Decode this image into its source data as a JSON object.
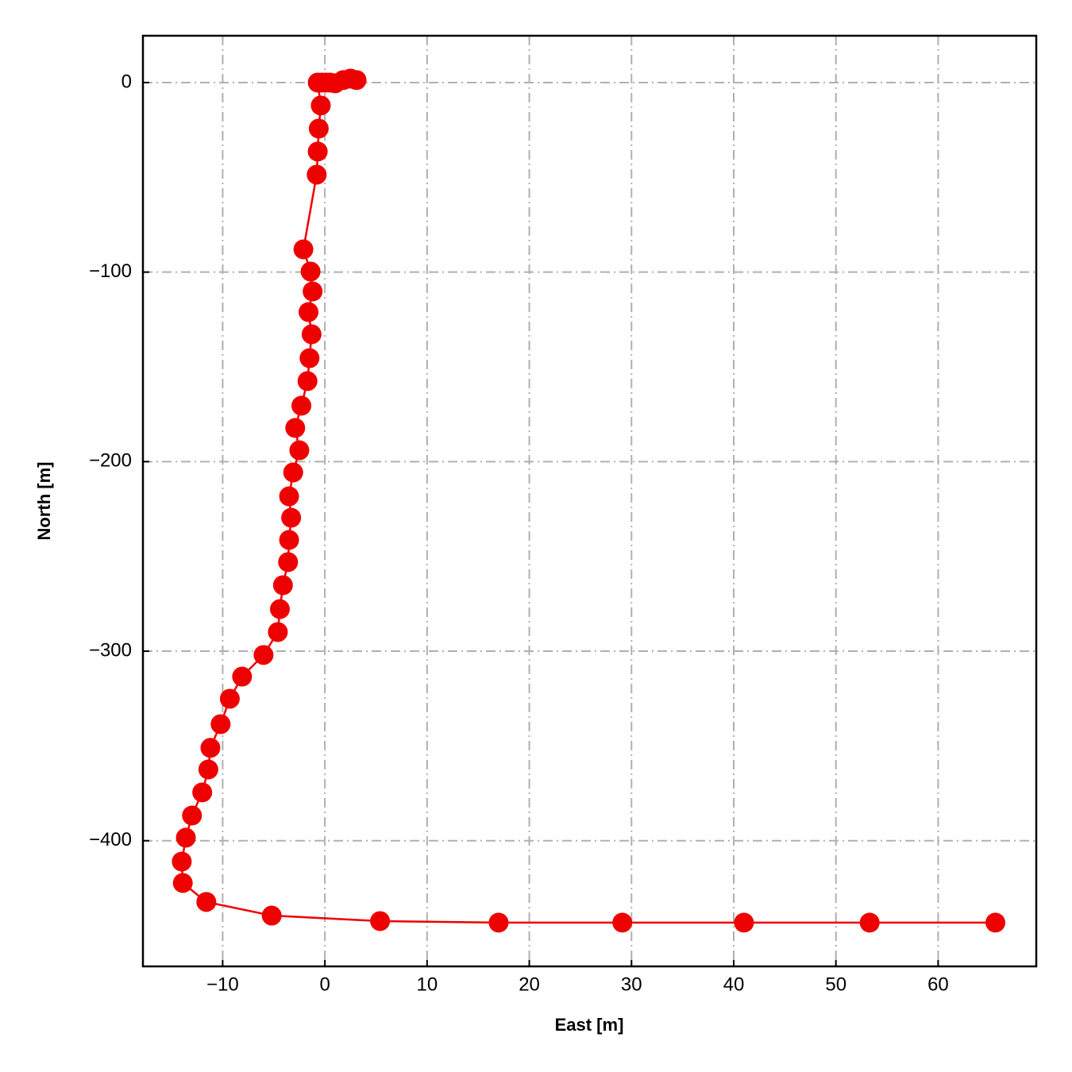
{
  "chart_data": {
    "type": "line",
    "xlabel": "East [m]",
    "ylabel": "North [m]",
    "color": "#ee0000",
    "grid": true,
    "markers": true,
    "x": [
      3.1,
      2.5,
      1.8,
      1.0,
      0.5,
      0.1,
      -0.3,
      -0.7,
      -0.4,
      -0.6,
      -0.7,
      -0.8,
      -2.1,
      -1.4,
      -1.2,
      -1.6,
      -1.3,
      -1.5,
      -1.7,
      -2.3,
      -2.9,
      -2.5,
      -3.1,
      -3.5,
      -3.3,
      -3.5,
      -3.6,
      -4.1,
      -4.4,
      -4.6,
      -6.0,
      -8.1,
      -9.3,
      -10.2,
      -11.2,
      -11.4,
      -12.0,
      -13.0,
      -13.6,
      -14.0,
      -13.9,
      -11.6,
      -5.2,
      5.4,
      17.0,
      29.1,
      41.0,
      53.3,
      65.6
    ],
    "values": [
      1.3,
      2.1,
      1.3,
      -0.4,
      0,
      0,
      0,
      0,
      -12.1,
      -24.3,
      -36.4,
      -48.6,
      -88.0,
      -99.7,
      -110.2,
      -121.1,
      -132.8,
      -145.4,
      -157.5,
      -170.5,
      -182.2,
      -194.0,
      -205.7,
      -218.3,
      -229.6,
      -241.3,
      -253.0,
      -265.2,
      -277.8,
      -289.9,
      -302.0,
      -313.4,
      -325.1,
      -338.5,
      -351.0,
      -362.4,
      -374.5,
      -386.7,
      -398.4,
      -411.0,
      -422.3,
      -432.3,
      -439.5,
      -442.4,
      -443.2,
      -443.2,
      -443.2,
      -443.2,
      -443.2
    ],
    "xlim": [
      -17.8,
      69.6
    ],
    "ylim": [
      -466.3,
      24.7
    ],
    "xticks": [
      {
        "value": -10,
        "label": "−10"
      },
      0,
      10,
      20,
      30,
      40,
      50,
      60
    ],
    "yticks": [
      0,
      {
        "value": -100,
        "label": "−100"
      },
      {
        "value": -200,
        "label": "−200"
      },
      {
        "value": -300,
        "label": "−300"
      },
      {
        "value": -400,
        "label": "−400"
      }
    ]
  }
}
